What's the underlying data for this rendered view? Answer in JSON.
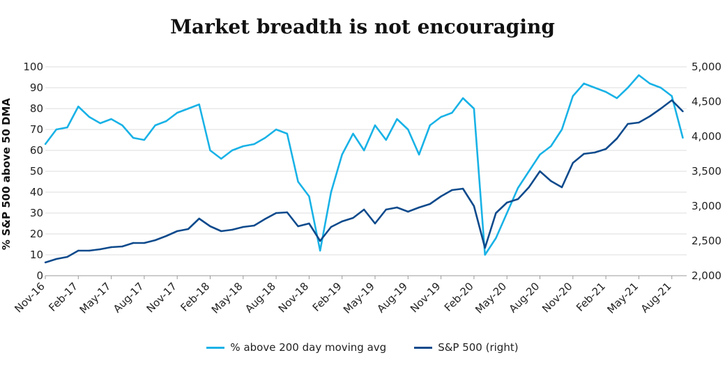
{
  "colors": {
    "breadth": "#19b2e6",
    "sp500": "#0d4a8c",
    "grid": "#dcdcdc"
  },
  "chart_data": {
    "type": "line",
    "title": "Market breadth is not encouraging",
    "ylabel": "% S&P 500 above 50 DMA",
    "ylim": [
      0,
      100
    ],
    "y2lim": [
      2000,
      5000
    ],
    "yticks": [
      "0",
      "10",
      "20",
      "30",
      "40",
      "50",
      "60",
      "70",
      "80",
      "90",
      "100"
    ],
    "y2ticks": [
      "2,000",
      "2,500",
      "3,000",
      "3,500",
      "4,000",
      "4,500",
      "5,000"
    ],
    "xticks": [
      "Nov-16",
      "Feb-17",
      "May-17",
      "Aug-17",
      "Nov-17",
      "Feb-18",
      "May-18",
      "Aug-18",
      "Nov-18",
      "Feb-19",
      "May-19",
      "Aug-19",
      "Nov-19",
      "Feb-20",
      "May-20",
      "Aug-20",
      "Nov-20",
      "Feb-21",
      "May-21",
      "Aug-21"
    ],
    "legend_position": "bottom",
    "series": [
      {
        "name": "% above 200 day moving avg",
        "axis": "left",
        "x": [
          "2016-11",
          "2016-12",
          "2017-01",
          "2017-02",
          "2017-03",
          "2017-04",
          "2017-05",
          "2017-06",
          "2017-07",
          "2017-08",
          "2017-09",
          "2017-10",
          "2017-11",
          "2017-12",
          "2018-01",
          "2018-02",
          "2018-03",
          "2018-04",
          "2018-05",
          "2018-06",
          "2018-07",
          "2018-08",
          "2018-09",
          "2018-10",
          "2018-11",
          "2018-12",
          "2019-01",
          "2019-02",
          "2019-03",
          "2019-04",
          "2019-05",
          "2019-06",
          "2019-07",
          "2019-08",
          "2019-09",
          "2019-10",
          "2019-11",
          "2019-12",
          "2020-01",
          "2020-02",
          "2020-03",
          "2020-04",
          "2020-05",
          "2020-06",
          "2020-07",
          "2020-08",
          "2020-09",
          "2020-10",
          "2020-11",
          "2020-12",
          "2021-01",
          "2021-02",
          "2021-03",
          "2021-04",
          "2021-05",
          "2021-06",
          "2021-07",
          "2021-08",
          "2021-09"
        ],
        "values": [
          63,
          70,
          71,
          81,
          76,
          73,
          75,
          72,
          66,
          65,
          72,
          74,
          78,
          80,
          82,
          60,
          56,
          60,
          62,
          63,
          66,
          70,
          68,
          45,
          38,
          12,
          40,
          58,
          68,
          60,
          72,
          65,
          75,
          70,
          58,
          72,
          76,
          78,
          85,
          80,
          10,
          18,
          30,
          42,
          50,
          58,
          62,
          70,
          86,
          92,
          90,
          88,
          85,
          90,
          96,
          92,
          90,
          86,
          66
        ]
      },
      {
        "name": "S&P 500 (right)",
        "axis": "right",
        "x": [
          "2016-11",
          "2016-12",
          "2017-01",
          "2017-02",
          "2017-03",
          "2017-04",
          "2017-05",
          "2017-06",
          "2017-07",
          "2017-08",
          "2017-09",
          "2017-10",
          "2017-11",
          "2017-12",
          "2018-01",
          "2018-02",
          "2018-03",
          "2018-04",
          "2018-05",
          "2018-06",
          "2018-07",
          "2018-08",
          "2018-09",
          "2018-10",
          "2018-11",
          "2018-12",
          "2019-01",
          "2019-02",
          "2019-03",
          "2019-04",
          "2019-05",
          "2019-06",
          "2019-07",
          "2019-08",
          "2019-09",
          "2019-10",
          "2019-11",
          "2019-12",
          "2020-01",
          "2020-02",
          "2020-03",
          "2020-04",
          "2020-05",
          "2020-06",
          "2020-07",
          "2020-08",
          "2020-09",
          "2020-10",
          "2020-11",
          "2020-12",
          "2021-01",
          "2021-02",
          "2021-03",
          "2021-04",
          "2021-05",
          "2021-06",
          "2021-07",
          "2021-08",
          "2021-09"
        ],
        "values": [
          2190,
          2240,
          2270,
          2360,
          2360,
          2380,
          2410,
          2420,
          2470,
          2470,
          2510,
          2570,
          2640,
          2670,
          2820,
          2710,
          2640,
          2660,
          2700,
          2720,
          2815,
          2900,
          2910,
          2710,
          2750,
          2500,
          2700,
          2780,
          2830,
          2950,
          2750,
          2950,
          2980,
          2920,
          2980,
          3030,
          3140,
          3230,
          3250,
          3000,
          2400,
          2900,
          3050,
          3100,
          3270,
          3500,
          3360,
          3270,
          3620,
          3750,
          3770,
          3820,
          3970,
          4180,
          4200,
          4290,
          4400,
          4520,
          4360
        ]
      }
    ]
  }
}
